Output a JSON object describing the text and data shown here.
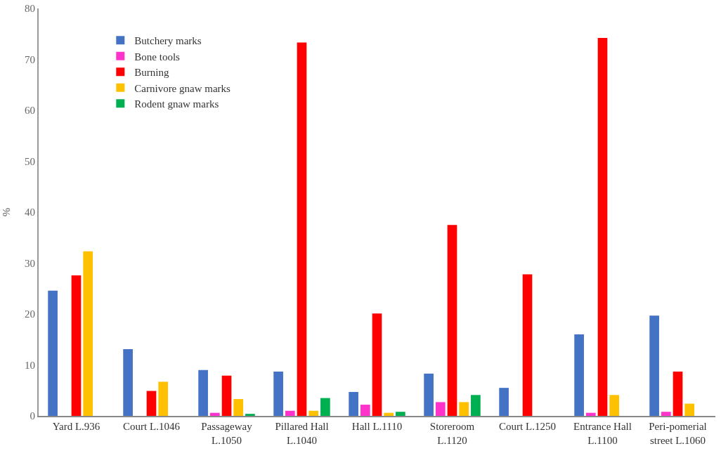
{
  "chart_data": {
    "type": "bar",
    "ylabel": "%",
    "categories": [
      "Yard L.936",
      "Court L.1046",
      "Passageway L.1050",
      "Pillared Hall L.1040",
      "Hall L.1110",
      "Storeroom L.1120",
      "Court L.1250",
      "Entrance Hall L.1100",
      "Peri-pomerial street L.1060"
    ],
    "series": [
      {
        "name": "Butchery marks",
        "color": "#4472c4",
        "values": [
          24.6,
          13.1,
          9.0,
          8.7,
          4.7,
          8.3,
          5.5,
          16.0,
          19.7
        ]
      },
      {
        "name": "Bone tools",
        "color": "#ff33cc",
        "values": [
          0,
          0,
          0.6,
          1.0,
          2.2,
          2.7,
          0,
          0.6,
          0.8
        ]
      },
      {
        "name": "Burning",
        "color": "#ff0000",
        "values": [
          27.6,
          4.9,
          7.9,
          73.3,
          20.1,
          37.5,
          27.8,
          74.2,
          8.7
        ]
      },
      {
        "name": "Carnivore gnaw marks",
        "color": "#ffc000",
        "values": [
          32.3,
          6.7,
          3.3,
          1.0,
          0.6,
          2.7,
          0,
          4.1,
          2.4
        ]
      },
      {
        "name": "Rodent gnaw marks",
        "color": "#00b050",
        "values": [
          0,
          0,
          0.4,
          3.5,
          0.8,
          4.1,
          0,
          0,
          0
        ]
      }
    ],
    "ylim": [
      0,
      80
    ],
    "yticks": [
      0,
      10,
      20,
      30,
      40,
      50,
      60,
      70,
      80
    ],
    "grid": false,
    "legend": "top left"
  }
}
